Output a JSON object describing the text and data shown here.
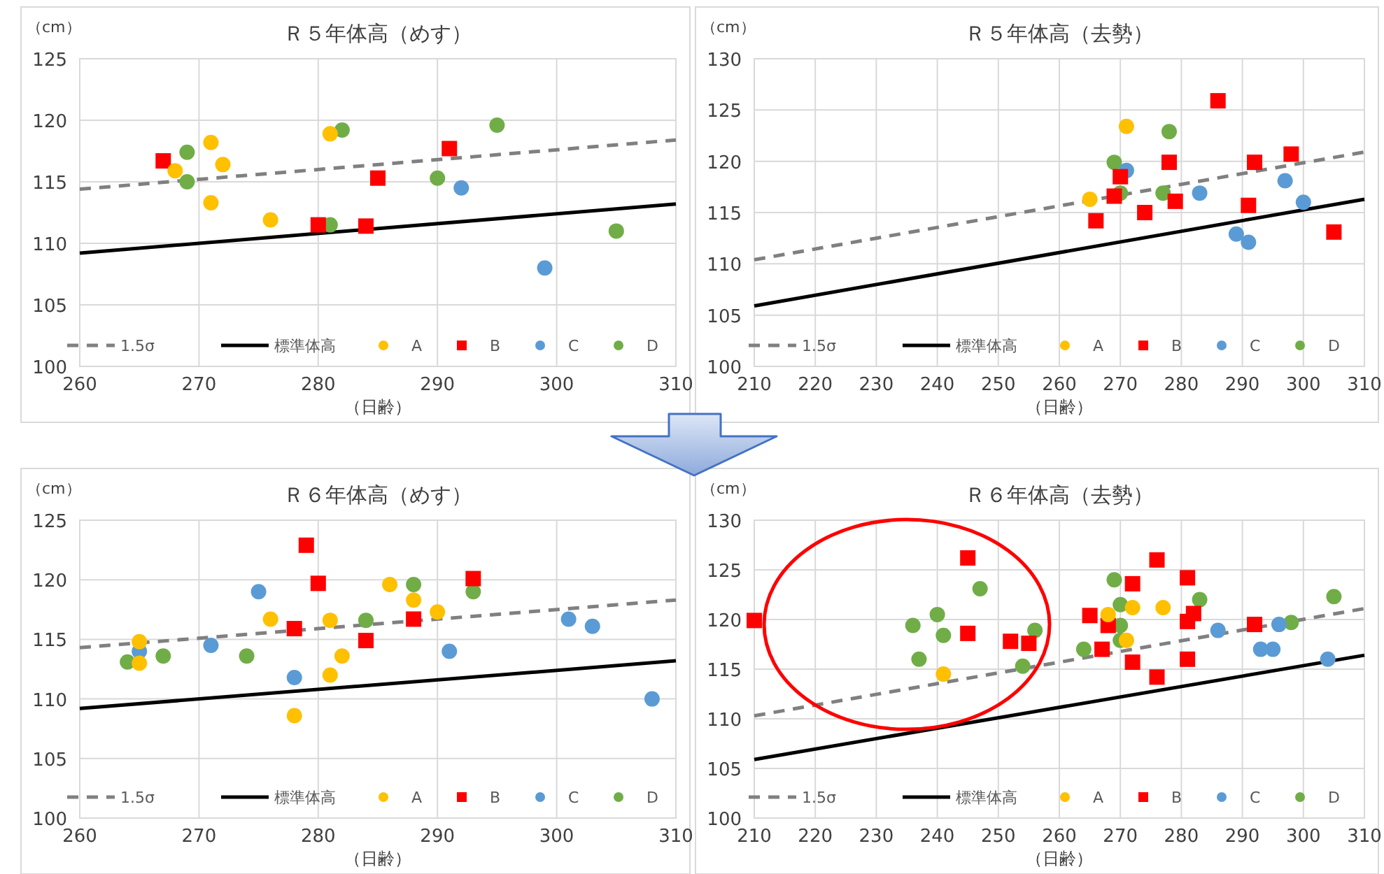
{
  "chart_data": [
    {
      "type": "scatter",
      "title": "Ｒ５年体高（めす）",
      "xlabel": "（日齢）",
      "ylabel": "（cm）",
      "xlim": [
        260,
        310
      ],
      "ylim": [
        100,
        125
      ],
      "xticks": [
        260,
        270,
        280,
        290,
        300,
        310
      ],
      "yticks": [
        100,
        105,
        110,
        115,
        120,
        125
      ],
      "grid": true,
      "legend": "bottom",
      "series": [
        {
          "name": "1.5σ",
          "type": "line",
          "line_style": "dashed",
          "color": "#808080",
          "x": [
            260,
            310
          ],
          "values": [
            114.4,
            118.4
          ]
        },
        {
          "name": "標準体高",
          "type": "line",
          "line_style": "solid",
          "color": "#000000",
          "x": [
            260,
            310
          ],
          "values": [
            109.2,
            113.2
          ]
        },
        {
          "name": "A",
          "marker": "circle",
          "color": "#ffc000",
          "x": [
            268,
            271,
            272,
            271,
            276,
            281
          ],
          "values": [
            115.9,
            118.2,
            116.4,
            113.3,
            111.9,
            118.9
          ]
        },
        {
          "name": "B",
          "marker": "square",
          "color": "#ff0000",
          "x": [
            267,
            280,
            284,
            285,
            291
          ],
          "values": [
            116.7,
            111.5,
            111.4,
            115.3,
            117.7
          ]
        },
        {
          "name": "C",
          "marker": "circle",
          "color": "#5b9bd5",
          "x": [
            292,
            299
          ],
          "values": [
            114.5,
            108.0
          ]
        },
        {
          "name": "D",
          "marker": "circle",
          "color": "#70ad47",
          "x": [
            269,
            269,
            281,
            282,
            290,
            295,
            305
          ],
          "values": [
            117.4,
            115.0,
            111.5,
            119.2,
            115.3,
            119.6,
            111.0
          ]
        }
      ]
    },
    {
      "type": "scatter",
      "title": "Ｒ５年体高（去勢）",
      "xlabel": "（日齢）",
      "ylabel": "（cm）",
      "xlim": [
        210,
        310
      ],
      "ylim": [
        100,
        130
      ],
      "xticks": [
        210,
        220,
        230,
        240,
        250,
        260,
        270,
        280,
        290,
        300,
        310
      ],
      "yticks": [
        100,
        105,
        110,
        115,
        120,
        125,
        130
      ],
      "grid": true,
      "legend": "bottom",
      "series": [
        {
          "name": "1.5σ",
          "type": "line",
          "line_style": "dashed",
          "color": "#808080",
          "x": [
            210,
            310
          ],
          "values": [
            110.4,
            120.9
          ]
        },
        {
          "name": "標準体高",
          "type": "line",
          "line_style": "solid",
          "color": "#000000",
          "x": [
            210,
            310
          ],
          "values": [
            105.9,
            116.3
          ]
        },
        {
          "name": "A",
          "marker": "circle",
          "color": "#ffc000",
          "x": [
            265,
            271
          ],
          "values": [
            116.3,
            123.4
          ]
        },
        {
          "name": "B",
          "marker": "square",
          "color": "#ff0000",
          "x": [
            266,
            269,
            270,
            274,
            278,
            279,
            286,
            291,
            292,
            298,
            305
          ],
          "values": [
            114.2,
            116.6,
            118.5,
            115.0,
            119.9,
            116.1,
            125.9,
            115.7,
            119.9,
            120.7,
            113.1
          ]
        },
        {
          "name": "C",
          "marker": "circle",
          "color": "#5b9bd5",
          "x": [
            271,
            283,
            289,
            291,
            297,
            300
          ],
          "values": [
            119.1,
            116.9,
            112.9,
            112.1,
            118.1,
            116.0
          ]
        },
        {
          "name": "D",
          "marker": "circle",
          "color": "#70ad47",
          "x": [
            269,
            270,
            277,
            278
          ],
          "values": [
            119.9,
            116.9,
            116.9,
            122.9
          ]
        }
      ]
    },
    {
      "type": "scatter",
      "title": "Ｒ６年体高（めす）",
      "xlabel": "（日齢）",
      "ylabel": "（cm）",
      "xlim": [
        260,
        310
      ],
      "ylim": [
        100,
        125
      ],
      "xticks": [
        260,
        270,
        280,
        290,
        300,
        310
      ],
      "yticks": [
        100,
        105,
        110,
        115,
        120,
        125
      ],
      "grid": true,
      "legend": "bottom",
      "series": [
        {
          "name": "1.5σ",
          "type": "line",
          "line_style": "dashed",
          "color": "#808080",
          "x": [
            260,
            310
          ],
          "values": [
            114.3,
            118.3
          ]
        },
        {
          "name": "標準体高",
          "type": "line",
          "line_style": "solid",
          "color": "#000000",
          "x": [
            260,
            310
          ],
          "values": [
            109.2,
            113.2
          ]
        },
        {
          "name": "A",
          "marker": "circle",
          "color": "#ffc000",
          "x": [
            265,
            265,
            276,
            278,
            281,
            281,
            282,
            286,
            288,
            290
          ],
          "values": [
            114.8,
            113.0,
            116.7,
            108.6,
            116.6,
            112.0,
            113.6,
            119.6,
            118.3,
            117.3
          ]
        },
        {
          "name": "B",
          "marker": "square",
          "color": "#ff0000",
          "x": [
            279,
            280,
            278,
            284,
            288,
            293
          ],
          "values": [
            122.9,
            119.7,
            115.9,
            114.9,
            116.7,
            120.1
          ]
        },
        {
          "name": "C",
          "marker": "circle",
          "color": "#5b9bd5",
          "x": [
            265,
            271,
            275,
            278,
            291,
            301,
            303,
            308
          ],
          "values": [
            114.0,
            114.5,
            119.0,
            111.8,
            114.0,
            116.7,
            116.1,
            110.0
          ]
        },
        {
          "name": "D",
          "marker": "circle",
          "color": "#70ad47",
          "x": [
            264,
            267,
            274,
            284,
            288,
            293
          ],
          "values": [
            113.1,
            113.6,
            113.6,
            116.6,
            119.6,
            119.0
          ]
        }
      ]
    },
    {
      "type": "scatter",
      "title": "Ｒ６年体高（去勢）",
      "xlabel": "（日齢）",
      "ylabel": "（cm）",
      "xlim": [
        210,
        310
      ],
      "ylim": [
        100,
        130
      ],
      "xticks": [
        210,
        220,
        230,
        240,
        250,
        260,
        270,
        280,
        290,
        300,
        310
      ],
      "yticks": [
        100,
        105,
        110,
        115,
        120,
        125,
        130
      ],
      "grid": true,
      "legend": "bottom",
      "series": [
        {
          "name": "1.5σ",
          "type": "line",
          "line_style": "dashed",
          "color": "#808080",
          "x": [
            210,
            310
          ],
          "values": [
            110.3,
            121.1
          ]
        },
        {
          "name": "標準体高",
          "type": "line",
          "line_style": "solid",
          "color": "#000000",
          "x": [
            210,
            310
          ],
          "values": [
            105.9,
            116.4
          ]
        },
        {
          "name": "A",
          "marker": "circle",
          "color": "#ffc000",
          "x": [
            241,
            268,
            271,
            272,
            277
          ],
          "values": [
            114.5,
            120.5,
            117.9,
            121.2,
            121.2
          ]
        },
        {
          "name": "B",
          "marker": "square",
          "color": "#ff0000",
          "x": [
            210,
            245,
            245,
            252,
            255,
            265,
            268,
            267,
            272,
            272,
            276,
            276,
            281,
            282,
            281,
            281,
            292
          ],
          "values": [
            119.9,
            126.2,
            118.6,
            117.8,
            117.6,
            120.4,
            119.4,
            117.0,
            123.6,
            115.7,
            126.0,
            114.2,
            124.2,
            120.6,
            119.8,
            116.0,
            119.5
          ]
        },
        {
          "name": "C",
          "marker": "circle",
          "color": "#5b9bd5",
          "x": [
            286,
            293,
            295,
            296,
            304
          ],
          "values": [
            118.9,
            117.0,
            117.0,
            119.5,
            116.0
          ]
        },
        {
          "name": "D",
          "marker": "circle",
          "color": "#70ad47",
          "x": [
            236,
            237,
            240,
            241,
            247,
            254,
            256,
            264,
            269,
            270,
            270,
            270,
            283,
            298,
            305
          ],
          "values": [
            119.4,
            116.0,
            120.5,
            118.4,
            123.1,
            115.3,
            118.9,
            117.0,
            124.0,
            121.5,
            119.4,
            117.9,
            122.0,
            119.7,
            122.3
          ]
        }
      ]
    }
  ]
}
